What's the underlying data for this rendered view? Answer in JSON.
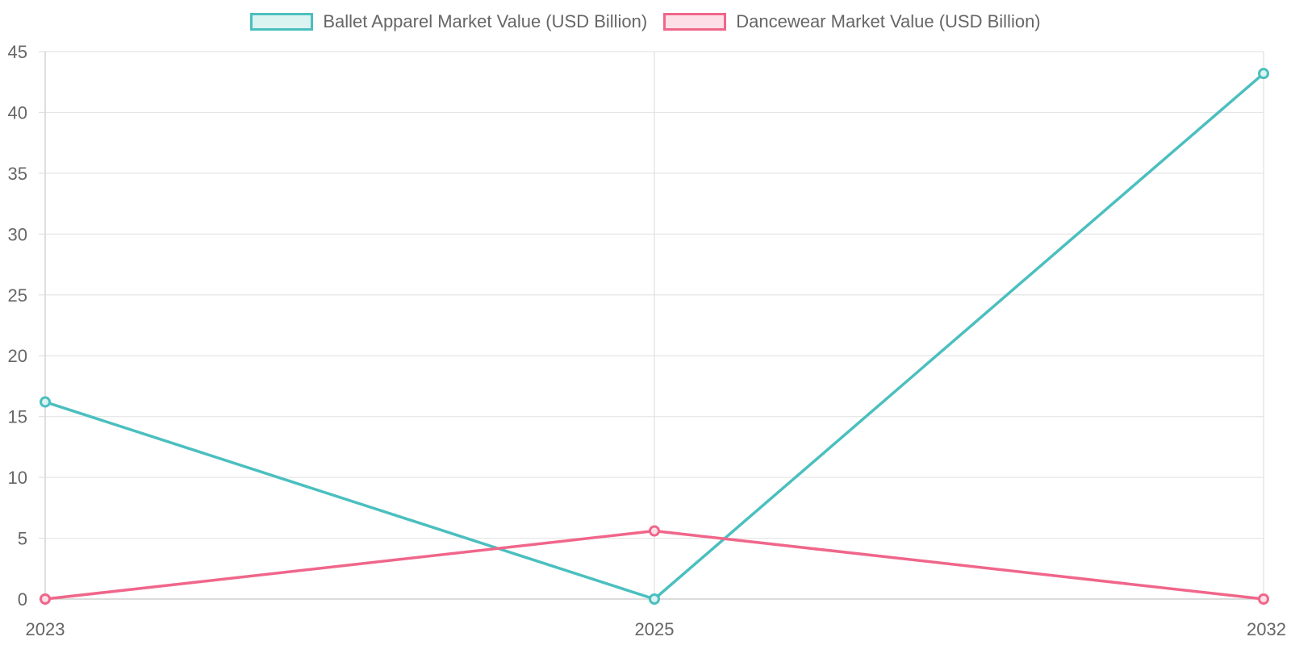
{
  "chart_data": {
    "type": "line",
    "x": [
      "2023",
      "2025",
      "2032"
    ],
    "series": [
      {
        "name": "Ballet Apparel Market Value (USD Billion)",
        "values": [
          16.2,
          0,
          43.2
        ],
        "color": "#4bbfbf",
        "fill": "#dcf4f1"
      },
      {
        "name": "Dancewear Market Value (USD Billion)",
        "values": [
          0,
          5.6,
          0
        ],
        "color": "#f0668a",
        "fill": "#fde0e7"
      }
    ],
    "ylim": [
      0,
      45
    ],
    "yticks": [
      0,
      5,
      10,
      15,
      20,
      25,
      30,
      35,
      40,
      45
    ],
    "grid": true,
    "legend_position": "top-center"
  }
}
